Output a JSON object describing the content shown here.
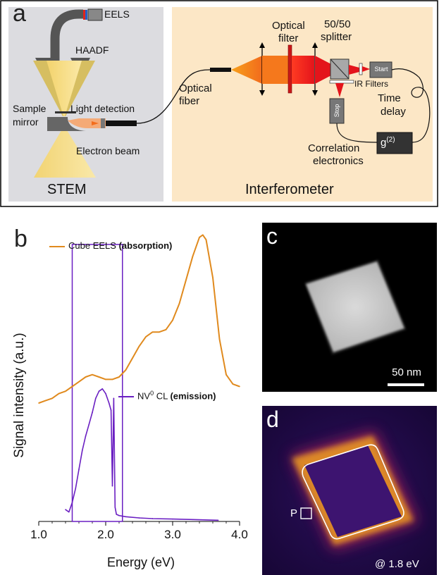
{
  "panel_a": {
    "letter": "a",
    "stem": {
      "label": "STEM",
      "eels": "EELS",
      "haadf": "HAADF",
      "sample": "Sample",
      "mirror": "mirror",
      "light_detection": "Light detection",
      "electron_beam": "Electron beam"
    },
    "interferometer": {
      "label": "Interferometer",
      "optical_fiber_1": "Optical",
      "optical_fiber_2": "fiber",
      "optical_filter_1": "Optical",
      "optical_filter_2": "filter",
      "splitter_1": "50/50",
      "splitter_2": "splitter",
      "start": "Start",
      "stop": "Stop",
      "ir_filters": "IR Filters",
      "time_delay_1": "Time",
      "time_delay_2": "delay",
      "g2": "g",
      "g2_sup": "(2)",
      "correlation_1": "Correlation",
      "correlation_2": "electronics"
    }
  },
  "panel_b": {
    "letter": "b",
    "chart_data": {
      "type": "line",
      "xlabel": "Energy (eV)",
      "ylabel": "Signal intensity (a.u.)",
      "xlim": [
        1.0,
        4.0
      ],
      "xticks": [
        "1.0",
        "2.0",
        "3.0",
        "4.0"
      ],
      "series": [
        {
          "name": "Cube EELS",
          "name_bold": "(absorption)",
          "color": "#e08a1e",
          "x": [
            1.0,
            1.1,
            1.2,
            1.3,
            1.4,
            1.5,
            1.6,
            1.7,
            1.8,
            1.9,
            2.0,
            2.1,
            2.2,
            2.3,
            2.4,
            2.5,
            2.6,
            2.7,
            2.8,
            2.9,
            3.0,
            3.1,
            3.2,
            3.3,
            3.4,
            3.45,
            3.5,
            3.6,
            3.7,
            3.8,
            3.9,
            4.0
          ],
          "y": [
            0.5,
            0.51,
            0.52,
            0.54,
            0.55,
            0.57,
            0.59,
            0.61,
            0.62,
            0.61,
            0.6,
            0.6,
            0.61,
            0.64,
            0.69,
            0.74,
            0.78,
            0.8,
            0.8,
            0.81,
            0.85,
            0.92,
            1.02,
            1.12,
            1.2,
            1.21,
            1.19,
            1.03,
            0.77,
            0.62,
            0.58,
            0.57
          ]
        },
        {
          "name": "NV",
          "name_sup": "0",
          "name_rest": " CL",
          "name_bold": "(emission)",
          "color": "#6a1fc2",
          "x": [
            1.4,
            1.45,
            1.5,
            1.55,
            1.6,
            1.65,
            1.7,
            1.75,
            1.8,
            1.85,
            1.9,
            1.95,
            2.0,
            2.05,
            2.08,
            2.1,
            2.12,
            2.14,
            2.16,
            2.2,
            2.3,
            2.5,
            2.7,
            3.0,
            3.3,
            3.68
          ],
          "y": [
            0.05,
            0.04,
            0.08,
            0.14,
            0.22,
            0.3,
            0.36,
            0.41,
            0.46,
            0.52,
            0.55,
            0.56,
            0.54,
            0.5,
            0.47,
            0.15,
            0.52,
            0.06,
            0.03,
            0.025,
            0.02,
            0.015,
            0.012,
            0.01,
            0.008,
            0.005
          ]
        }
      ],
      "highlight_range": [
        1.5,
        2.25
      ]
    }
  },
  "panel_c": {
    "letter": "c",
    "scalebar": "50 nm"
  },
  "panel_d": {
    "letter": "d",
    "point_label": "P",
    "energy": "@ 1.8 eV"
  }
}
